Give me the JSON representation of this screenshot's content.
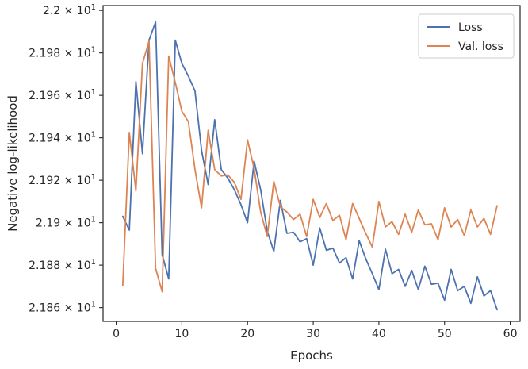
{
  "chart_data": {
    "type": "line",
    "title": "",
    "xlabel": "Epochs",
    "ylabel": "Negative log-likelihood",
    "xlim": [
      -2,
      61.5
    ],
    "ylim": [
      21.8535,
      22.0023
    ],
    "xticks": [
      0,
      10,
      20,
      30,
      40,
      50,
      60
    ],
    "yticks": [
      {
        "value": 21.86,
        "mant": "2.186",
        "exp": "1"
      },
      {
        "value": 21.88,
        "mant": "2.188",
        "exp": "1"
      },
      {
        "value": 21.9,
        "mant": "2.19",
        "exp": "1"
      },
      {
        "value": 21.92,
        "mant": "2.192",
        "exp": "1"
      },
      {
        "value": 21.94,
        "mant": "2.194",
        "exp": "1"
      },
      {
        "value": 21.96,
        "mant": "2.196",
        "exp": "1"
      },
      {
        "value": 21.98,
        "mant": "2.198",
        "exp": "1"
      },
      {
        "value": 22.0,
        "mant": "2.2",
        "exp": "1"
      }
    ],
    "times_sign": "×",
    "base": "10",
    "grid": false,
    "legend_position": "top-right",
    "x": [
      1,
      2,
      3,
      4,
      5,
      6,
      7,
      8,
      9,
      10,
      11,
      12,
      13,
      14,
      15,
      16,
      17,
      18,
      19,
      20,
      21,
      22,
      23,
      24,
      25,
      26,
      27,
      28,
      29,
      30,
      31,
      32,
      33,
      34,
      35,
      36,
      37,
      38,
      39,
      40,
      41,
      42,
      43,
      44,
      45,
      46,
      47,
      48,
      49,
      50,
      51,
      52,
      53,
      54,
      55,
      56,
      57,
      58
    ],
    "series": [
      {
        "name": "Loss",
        "color": "#4c72b0",
        "values": [
          21.903,
          21.8965,
          21.9665,
          21.9325,
          21.986,
          21.9945,
          21.885,
          21.8735,
          21.986,
          21.975,
          21.969,
          21.962,
          21.934,
          21.918,
          21.9485,
          21.925,
          21.921,
          21.9155,
          21.9085,
          21.9,
          21.929,
          21.9155,
          21.896,
          21.8865,
          21.9105,
          21.895,
          21.8955,
          21.891,
          21.8925,
          21.88,
          21.8975,
          21.887,
          21.888,
          21.881,
          21.8835,
          21.8735,
          21.8915,
          21.883,
          21.876,
          21.8685,
          21.8875,
          21.876,
          21.878,
          21.87,
          21.8775,
          21.8685,
          21.8795,
          21.871,
          21.8715,
          21.8635,
          21.878,
          21.868,
          21.87,
          21.862,
          21.8745,
          21.8655,
          21.868,
          21.859
        ]
      },
      {
        "name": "Val. loss",
        "color": "#dd8452",
        "values": [
          21.8705,
          21.9425,
          21.915,
          21.975,
          21.9855,
          21.8785,
          21.8675,
          21.9785,
          21.966,
          21.9525,
          21.9475,
          21.925,
          21.907,
          21.9435,
          21.925,
          21.922,
          21.9225,
          21.919,
          21.911,
          21.939,
          21.9255,
          21.905,
          21.8935,
          21.9195,
          21.9075,
          21.905,
          21.9015,
          21.904,
          21.8935,
          21.911,
          21.9025,
          21.909,
          21.901,
          21.9035,
          21.892,
          21.909,
          21.902,
          21.895,
          21.8885,
          21.91,
          21.898,
          21.9005,
          21.8945,
          21.904,
          21.8955,
          21.906,
          21.899,
          21.8995,
          21.892,
          21.907,
          21.898,
          21.9015,
          21.894,
          21.906,
          21.898,
          21.902,
          21.8945,
          21.908
        ]
      }
    ]
  }
}
